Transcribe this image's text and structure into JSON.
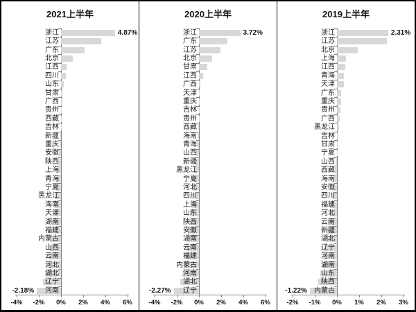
{
  "figure": {
    "bar_color": "#d8d8d8",
    "axis_color": "#7f7f7f",
    "border_color": "#000000",
    "text_color": "#1a1a1a"
  },
  "chart_data": [
    {
      "type": "bar",
      "orientation": "horizontal",
      "title": "2021上半年",
      "unit": "%",
      "categories": [
        "浙江",
        "江苏",
        "广东",
        "北京",
        "江西",
        "四川",
        "山东",
        "甘肃",
        "广西",
        "贵州",
        "西藏",
        "吉林",
        "新疆",
        "重庆",
        "安徽",
        "陕西",
        "上海",
        "青海",
        "宁夏",
        "黑龙江",
        "海南",
        "天津",
        "湖南",
        "福建",
        "内蒙古",
        "山西",
        "云南",
        "河北",
        "湖北",
        "辽宁",
        "河南"
      ],
      "values": [
        4.87,
        3.6,
        2.1,
        1.05,
        0.52,
        0.45,
        0.25,
        0.15,
        0.1,
        0.06,
        0.03,
        0.0,
        -0.08,
        -0.12,
        -0.18,
        -0.25,
        -0.32,
        -0.4,
        -0.48,
        -0.56,
        -0.64,
        -0.72,
        -0.8,
        -0.88,
        -0.96,
        -1.05,
        -1.15,
        -1.3,
        -1.45,
        -1.6,
        -2.18
      ],
      "annotations": [
        {
          "index": 0,
          "label": "4.87%"
        },
        {
          "index": 30,
          "label": "-2.18%"
        }
      ],
      "axis": {
        "min": -4,
        "max": 6,
        "tick_values": [
          -4,
          -2,
          0,
          2,
          4,
          6
        ],
        "tick_labels": [
          "-4%",
          "-2%",
          "0%",
          "2%",
          "4%",
          "6%"
        ]
      }
    },
    {
      "type": "bar",
      "orientation": "horizontal",
      "title": "2020上半年",
      "unit": "%",
      "categories": [
        "浙江",
        "广东",
        "江苏",
        "北京",
        "甘肃",
        "江西",
        "广西",
        "天津",
        "重庆",
        "吉林",
        "贵州",
        "西藏",
        "海南",
        "青海",
        "山西",
        "新疆",
        "黑龙江",
        "宁夏",
        "河北",
        "四川",
        "上海",
        "山东",
        "陕西",
        "安徽",
        "湖南",
        "云南",
        "福建",
        "内蒙古",
        "河南",
        "湖北",
        "辽宁"
      ],
      "values": [
        3.72,
        2.55,
        1.95,
        1.2,
        0.72,
        0.4,
        0.12,
        0.06,
        0.03,
        0.0,
        -0.03,
        -0.08,
        -0.14,
        -0.2,
        -0.27,
        -0.34,
        -0.42,
        -0.5,
        -0.58,
        -0.66,
        -0.74,
        -0.82,
        -0.9,
        -0.98,
        -1.06,
        -1.15,
        -1.25,
        -1.35,
        -1.5,
        -1.7,
        -2.27
      ],
      "annotations": [
        {
          "index": 0,
          "label": "3.72%"
        },
        {
          "index": 30,
          "label": "-2.27%"
        }
      ],
      "axis": {
        "min": -4,
        "max": 6,
        "tick_values": [
          -4,
          -2,
          0,
          2,
          4,
          6
        ],
        "tick_labels": [
          "-4%",
          "-2%",
          "0%",
          "2%",
          "4%",
          "6%"
        ]
      }
    },
    {
      "type": "bar",
      "orientation": "horizontal",
      "title": "2019上半年",
      "unit": "%",
      "categories": [
        "浙江",
        "江苏",
        "北京",
        "上海",
        "江西",
        "青海",
        "天津",
        "广东",
        "重庆",
        "贵州",
        "广西",
        "黑龙江",
        "吉林",
        "甘肃",
        "宁夏",
        "山西",
        "西藏",
        "海南",
        "安徽",
        "四川",
        "福建",
        "河北",
        "云南",
        "新疆",
        "湖北",
        "辽宁",
        "河南",
        "湖南",
        "山东",
        "陕西",
        "内蒙古"
      ],
      "values": [
        2.31,
        2.25,
        0.95,
        0.4,
        0.36,
        0.31,
        0.3,
        0.2,
        0.18,
        0.16,
        0.14,
        0.1,
        0.06,
        0.03,
        0.0,
        -0.05,
        -0.1,
        -0.15,
        -0.2,
        -0.25,
        -0.3,
        -0.35,
        -0.4,
        -0.45,
        -0.5,
        -0.56,
        -0.62,
        -0.68,
        -0.75,
        -0.85,
        -1.22
      ],
      "annotations": [
        {
          "index": 0,
          "label": "2.31%"
        },
        {
          "index": 30,
          "label": "-1.22%"
        }
      ],
      "axis": {
        "min": -2,
        "max": 3,
        "tick_values": [
          -2,
          -1,
          0,
          1,
          2,
          3
        ],
        "tick_labels": [
          "-2%",
          "-1%",
          "0%",
          "1%",
          "2%",
          "3%"
        ]
      }
    }
  ]
}
